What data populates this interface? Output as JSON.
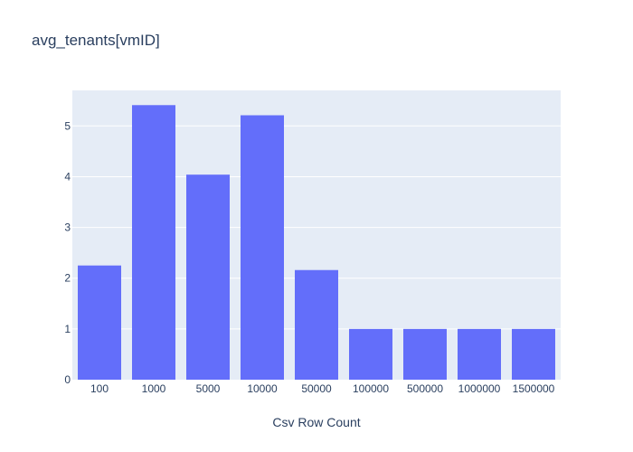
{
  "chart_data": {
    "type": "bar",
    "title": "avg_tenants[vmID]",
    "xlabel": "Csv Row Count",
    "ylabel": "",
    "categories": [
      "100",
      "1000",
      "5000",
      "10000",
      "50000",
      "100000",
      "500000",
      "1000000",
      "1500000"
    ],
    "values": [
      2.25,
      5.41,
      4.04,
      5.21,
      2.16,
      1.0,
      1.0,
      1.0,
      1.0
    ],
    "ylim": [
      0,
      5.7
    ],
    "yticks": [
      0,
      1,
      2,
      3,
      4,
      5
    ],
    "grid": true,
    "legend": "none",
    "colors": {
      "bar": "#636efa",
      "plot_background": "#e5ecf6",
      "grid": "#ffffff",
      "text": "#2a3f5f"
    }
  }
}
